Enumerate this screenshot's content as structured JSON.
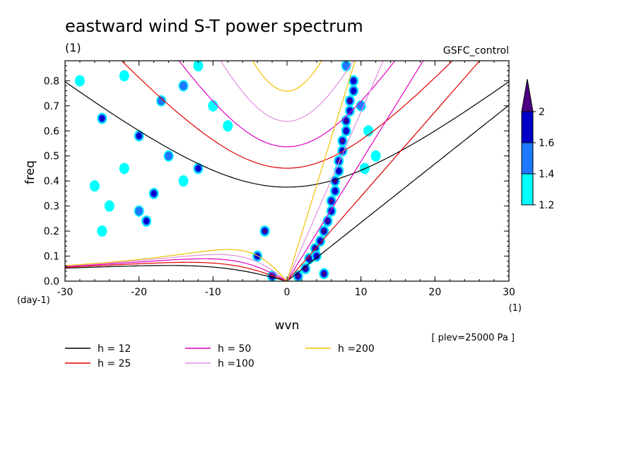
{
  "chart_data": {
    "type": "heatmap",
    "title": "eastward wind S-T power spectrum",
    "subtitle_left": "(1)",
    "subtitle_right": "GSFC_control",
    "xlabel": "wvn",
    "ylabel": "freq",
    "x_unit": "(1)",
    "y_unit": "(day-1)",
    "xlim": [
      -30,
      30
    ],
    "ylim": [
      0,
      0.88
    ],
    "x_ticks": [
      -30,
      -20,
      -10,
      0,
      10,
      20,
      30
    ],
    "x_tick_labels": [
      "-30",
      "-20",
      "-10",
      "0",
      "10",
      "20",
      "30"
    ],
    "y_ticks": [
      0,
      0.1,
      0.2,
      0.3,
      0.4,
      0.5,
      0.6,
      0.7,
      0.8
    ],
    "y_tick_labels": [
      "0.0",
      "0.1",
      "0.2",
      "0.3",
      "0.4",
      "0.5",
      "0.6",
      "0.7",
      "0.8"
    ],
    "annotation": "[ plev=25000 Pa ]",
    "colorbar": {
      "levels": [
        1.2,
        1.4,
        1.6,
        2
      ],
      "labels": [
        "1.2",
        "1.4",
        "1.6",
        "2"
      ],
      "colors": [
        "#00ffff",
        "#1e78ff",
        "#0000c8",
        "#4b0082"
      ]
    },
    "series": [
      {
        "name": "h = 12",
        "h": 12,
        "color": "#000000"
      },
      {
        "name": "h = 25",
        "h": 25,
        "color": "#e00000"
      },
      {
        "name": "h = 50",
        "h": 50,
        "color": "#e000c0"
      },
      {
        "name": "h =100",
        "h": 100,
        "color": "#e090e0"
      },
      {
        "name": "h =200",
        "h": 200,
        "color": "#f0c000"
      }
    ],
    "spectral_blobs": [
      [
        1.5,
        0.02,
        2.5
      ],
      [
        2.5,
        0.05,
        2
      ],
      [
        3,
        0.09,
        2
      ],
      [
        3.8,
        0.13,
        2
      ],
      [
        4.5,
        0.16,
        1.6
      ],
      [
        5,
        0.2,
        2
      ],
      [
        5.5,
        0.24,
        2
      ],
      [
        6,
        0.28,
        1.6
      ],
      [
        6,
        0.32,
        2
      ],
      [
        6.5,
        0.36,
        1.6
      ],
      [
        6.5,
        0.4,
        2
      ],
      [
        7,
        0.44,
        1.6
      ],
      [
        7,
        0.48,
        2
      ],
      [
        7.5,
        0.52,
        1.6
      ],
      [
        7.5,
        0.56,
        2
      ],
      [
        8,
        0.6,
        1.6
      ],
      [
        8,
        0.64,
        2
      ],
      [
        8.5,
        0.68,
        1.6
      ],
      [
        8.5,
        0.72,
        2
      ],
      [
        9,
        0.76,
        1.6
      ],
      [
        9,
        0.8,
        1.6
      ],
      [
        8,
        0.86,
        1.4
      ],
      [
        10,
        0.7,
        1.4
      ],
      [
        11,
        0.6,
        1.2
      ],
      [
        12,
        0.5,
        1.2
      ],
      [
        10.5,
        0.45,
        1.2
      ],
      [
        4,
        0.1,
        1.6
      ],
      [
        5,
        0.03,
        2
      ],
      [
        -3,
        0.2,
        2
      ],
      [
        -4,
        0.1,
        1.6
      ],
      [
        -20,
        0.58,
        1.6
      ],
      [
        -16,
        0.5,
        1.4
      ],
      [
        -22,
        0.45,
        1.2
      ],
      [
        -18,
        0.35,
        1.6
      ],
      [
        -24,
        0.3,
        1.2
      ],
      [
        -14,
        0.4,
        1.2
      ],
      [
        -12,
        0.45,
        1.6
      ],
      [
        -20,
        0.28,
        1.4
      ],
      [
        -25,
        0.2,
        1.2
      ],
      [
        -19,
        0.24,
        1.6
      ],
      [
        -26,
        0.38,
        1.2
      ],
      [
        -17,
        0.72,
        1.4
      ],
      [
        -22,
        0.82,
        1.2
      ],
      [
        -14,
        0.78,
        1.4
      ],
      [
        -10,
        0.7,
        1.2
      ],
      [
        -8,
        0.62,
        1.2
      ],
      [
        -25,
        0.65,
        1.6
      ],
      [
        -28,
        0.8,
        1.2
      ],
      [
        -12,
        0.86,
        1.2
      ],
      [
        -2,
        0.02,
        2
      ]
    ]
  }
}
